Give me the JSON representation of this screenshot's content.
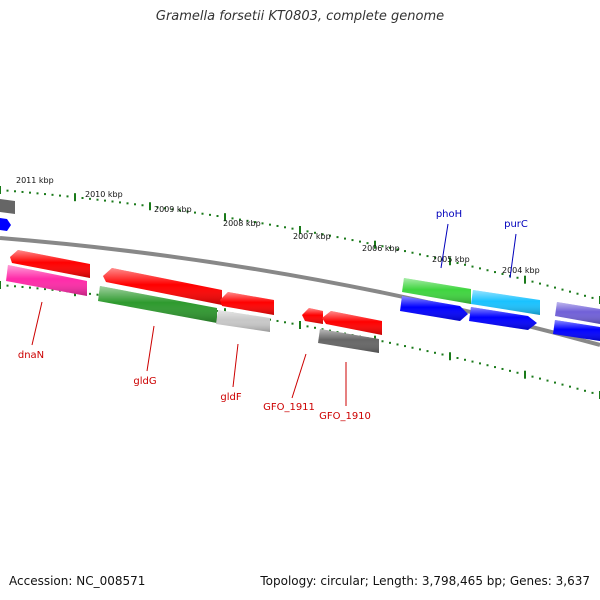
{
  "title": "Gramella forsetii KT0803, complete genome",
  "footer": {
    "accession": "Accession: NC_008571",
    "topology": "Topology: circular; Length: 3,798,465 bp; Genes: 3,637"
  },
  "colors": {
    "backbone": "#888888",
    "tick": "#1a7a1a",
    "forward_gene_label": "#0000bb",
    "reverse_gene_label": "#cc0000",
    "red": "#ff0000",
    "magenta": "#ff2aa8",
    "dark_green": "#2e9a2e",
    "light_gray": "#c8c8c8",
    "dark_gray": "#666666",
    "green": "#3fd53f",
    "cyan": "#19c2ff",
    "blue": "#0000ff",
    "purple": "#7060d8"
  },
  "kbp_labels": [
    "2011 kbp",
    "2010 kbp",
    "2009 kbp",
    "2008 kbp",
    "2007 kbp",
    "2006 kbp",
    "2005 kbp",
    "2004 kbp"
  ],
  "gene_labels": [
    "dnaN",
    "gldG",
    "gldF",
    "GFO_1911",
    "GFO_1910",
    "phoH",
    "purC"
  ]
}
